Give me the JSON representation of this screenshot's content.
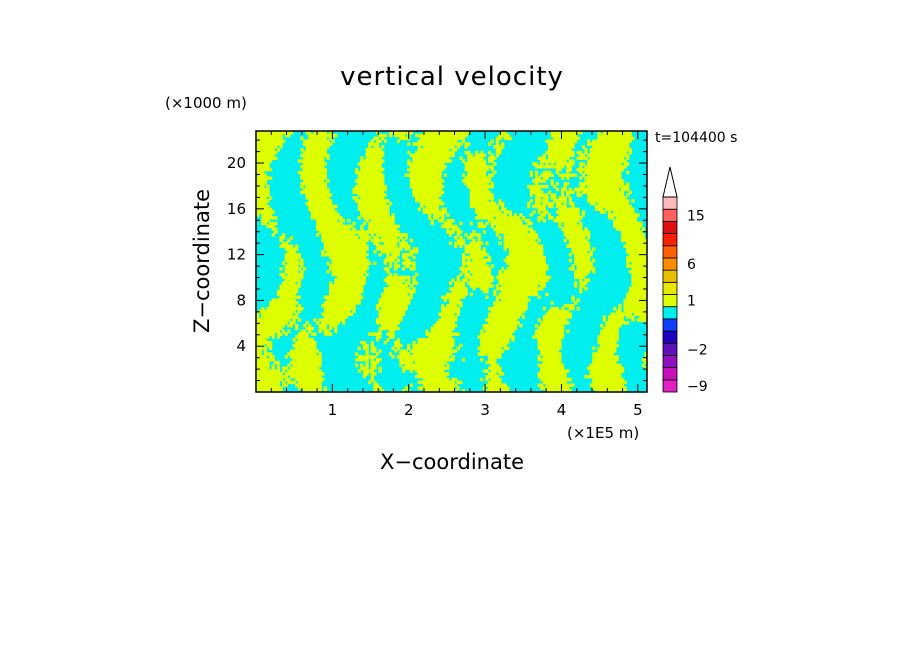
{
  "chart_data": {
    "type": "heatmap",
    "title": "vertical velocity",
    "xlabel": "X−coordinate",
    "ylabel": "Z−coordinate",
    "x_unit": "(×1E5 m)",
    "y_unit": "(×1000 m)",
    "time_label": "t=104400 s",
    "xlim": [
      0,
      5.12
    ],
    "ylim": [
      0,
      22.8
    ],
    "x_ticks": [
      1,
      2,
      3,
      4,
      5
    ],
    "y_ticks": [
      4,
      8,
      12,
      16,
      20
    ],
    "x_tick_labels": [
      "1",
      "2",
      "3",
      "4",
      "5"
    ],
    "y_tick_labels": [
      "4",
      "8",
      "12",
      "16",
      "20"
    ],
    "field_colors": {
      "negative": "#00eeee",
      "positive": "#ddff00"
    },
    "colorbar": {
      "colors": [
        "#e020c0",
        "#c810b8",
        "#9010c0",
        "#6010b8",
        "#2000c0",
        "#1040ff",
        "#00eeee",
        "#ddff00",
        "#e8e800",
        "#e8c000",
        "#ff8c00",
        "#ff6000",
        "#ff2000",
        "#e01010",
        "#ff6060",
        "#ffbbbb"
      ],
      "tick_labels": [
        "−9",
        "−2",
        "1",
        "6",
        "15"
      ],
      "label_positions": [
        0.5,
        3.5,
        7.5,
        10.5,
        14.5
      ]
    }
  }
}
